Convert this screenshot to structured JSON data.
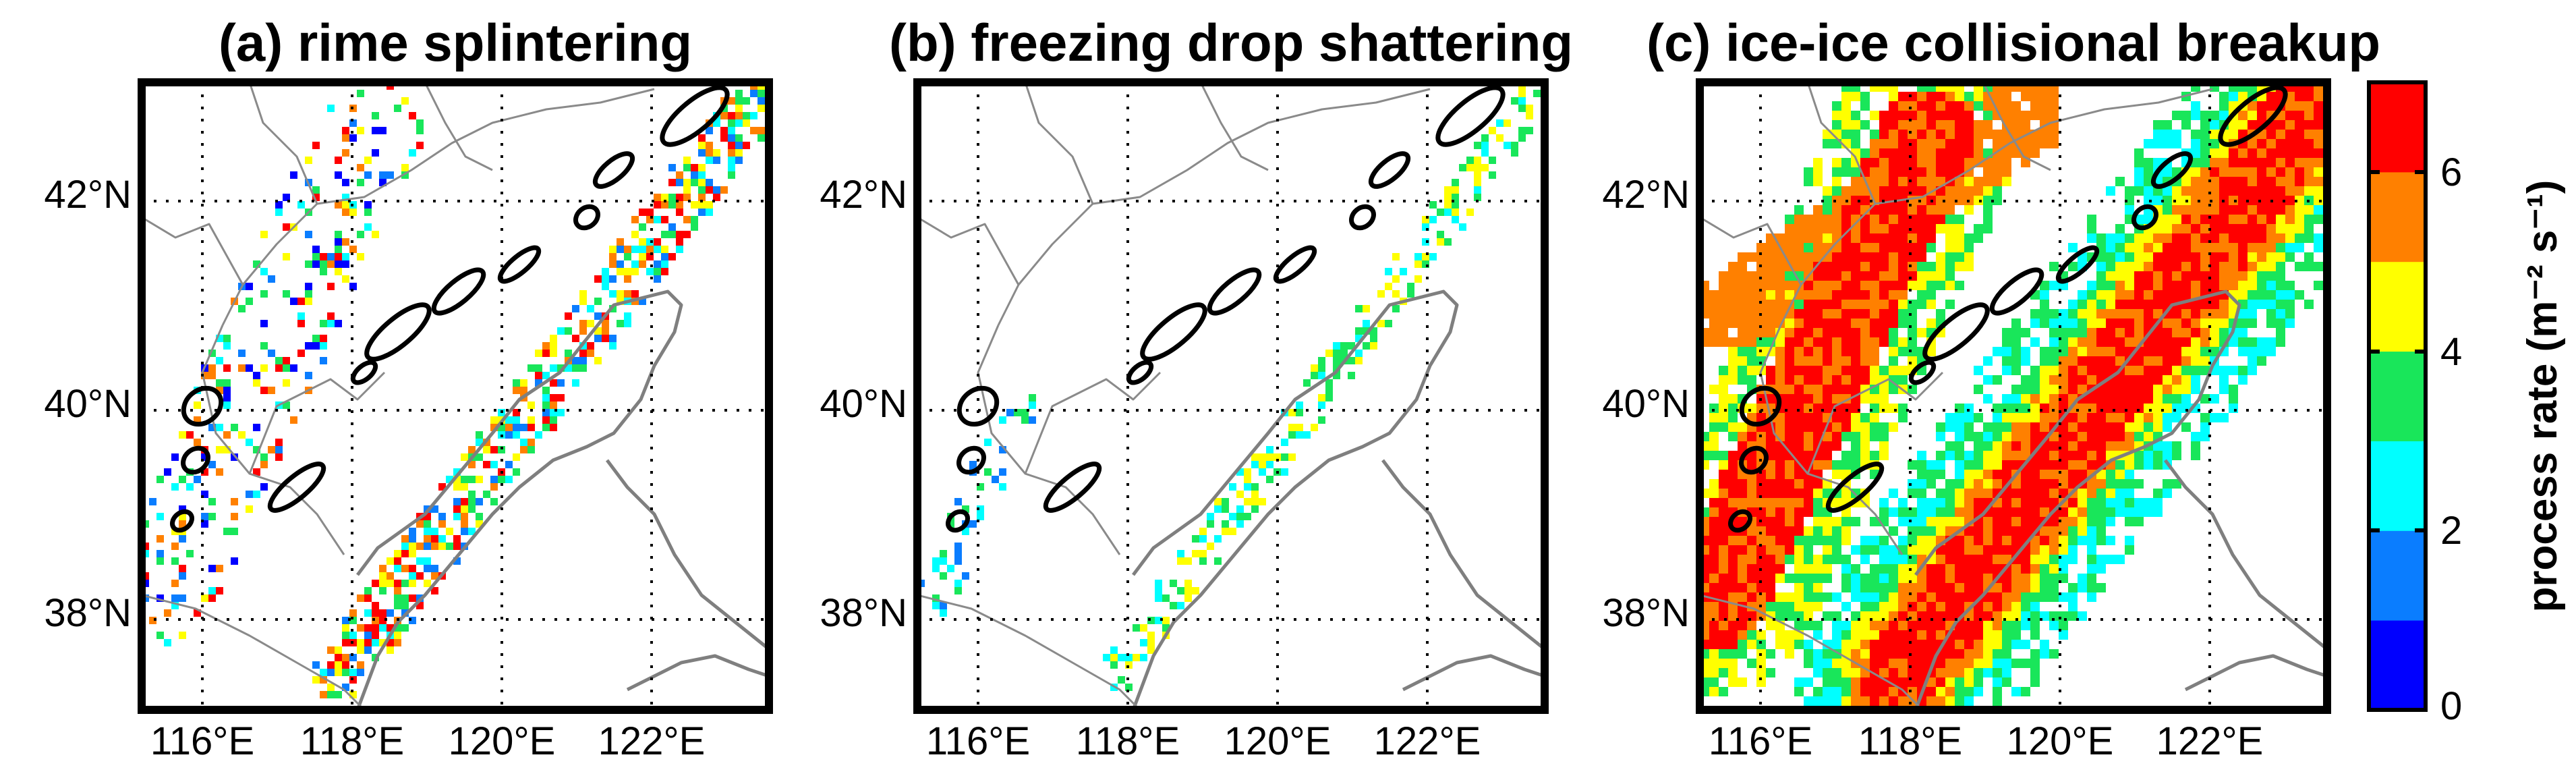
{
  "figure": {
    "panels": [
      {
        "id": "a",
        "title": "(a) rime splintering",
        "activity": "rime"
      },
      {
        "id": "b",
        "title": "(b) freezing drop shattering",
        "activity": "shatter"
      },
      {
        "id": "c",
        "title": "(c) ice-ice collisional breakup",
        "activity": "breakup"
      }
    ],
    "axes": {
      "x_ticks": [
        "116°E",
        "118°E",
        "120°E",
        "122°E"
      ],
      "y_ticks": [
        "42°N",
        "40°N",
        "38°N"
      ]
    },
    "colorbar": {
      "label": "process rate (m⁻² s⁻¹)",
      "tick_labels": [
        "0",
        "2",
        "4",
        "6"
      ],
      "colors": [
        "#0000ff",
        "#0a7dff",
        "#00ffff",
        "#19e65a",
        "#ffff00",
        "#ff8000",
        "#ff0000"
      ],
      "range": [
        0,
        7
      ]
    }
  },
  "chart_data": {
    "type": "heatmap",
    "panels": [
      "(a) rime splintering",
      "(b) freezing drop shattering",
      "(c) ice-ice collisional breakup"
    ],
    "x_axis": {
      "ticks": [
        116,
        118,
        120,
        122
      ],
      "tick_labels": [
        "116°E",
        "118°E",
        "120°E",
        "122°E"
      ],
      "range": [
        114.8,
        123.2
      ]
    },
    "y_axis": {
      "ticks": [
        42,
        40,
        38
      ],
      "tick_labels": [
        "42°N",
        "40°N",
        "38°N"
      ],
      "range": [
        37.0,
        43.0
      ]
    },
    "colorbar": {
      "label": "process rate (m⁻² s⁻¹)",
      "ticks": [
        0,
        2,
        4,
        6
      ],
      "range": [
        0,
        7
      ]
    },
    "grid": true
  }
}
